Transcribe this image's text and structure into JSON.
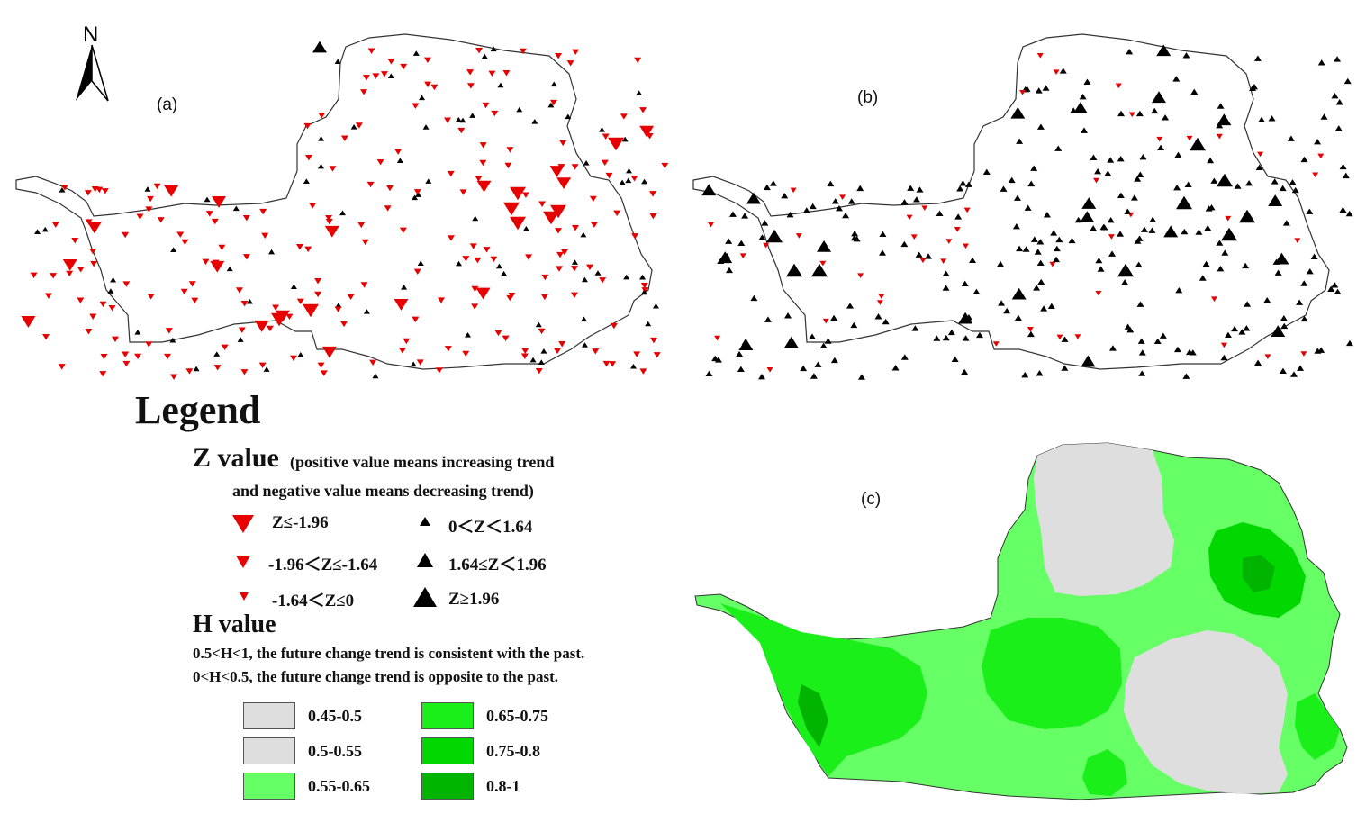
{
  "north_arrow": {
    "label": "N"
  },
  "panels": {
    "a": {
      "label": "(a)"
    },
    "b": {
      "label": "(b)"
    },
    "c": {
      "label": "(c)"
    }
  },
  "legend": {
    "title": "Legend",
    "z": {
      "title": "Z value",
      "note_line1": "(positive value means increasing trend",
      "note_line2": "and negative value means decreasing trend)",
      "symbols": [
        {
          "label": "Z≤-1.96",
          "color": "#e60000",
          "shape": "down-triangle",
          "size": "large"
        },
        {
          "label": "-1.96＜Z≤-1.64",
          "color": "#e60000",
          "shape": "down-triangle",
          "size": "medium"
        },
        {
          "label": "-1.64＜Z≤0",
          "color": "#e60000",
          "shape": "down-triangle",
          "size": "small"
        },
        {
          "label": "0＜Z＜1.64",
          "color": "#000000",
          "shape": "up-triangle",
          "size": "small"
        },
        {
          "label": "1.64≤Z＜1.96",
          "color": "#000000",
          "shape": "up-triangle",
          "size": "medium"
        },
        {
          "label": "Z≥1.96",
          "color": "#000000",
          "shape": "up-triangle",
          "size": "large"
        }
      ]
    },
    "h": {
      "title": "H value",
      "line1": "0.5<H<1, the future change trend is consistent with the past.",
      "line2": "0<H<0.5, the future change trend is opposite to the past.",
      "classes": [
        {
          "label": "0.45-0.5",
          "color": "#dedede"
        },
        {
          "label": "0.5-0.55",
          "color": "#dedede"
        },
        {
          "label": "0.55-0.65",
          "color": "#66ff66"
        },
        {
          "label": "0.65-0.75",
          "color": "#1aef1a"
        },
        {
          "label": "0.75-0.8",
          "color": "#00d800"
        },
        {
          "label": "0.8-1",
          "color": "#00b400"
        }
      ]
    }
  }
}
